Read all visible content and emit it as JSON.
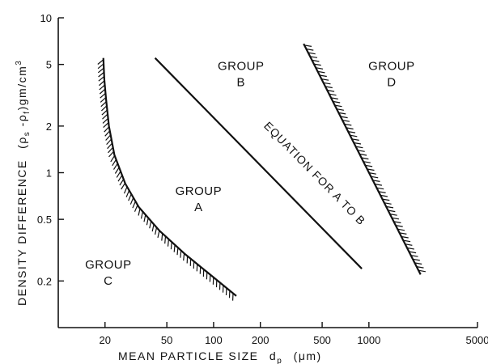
{
  "chart_data": {
    "type": "line",
    "title": "",
    "xlabel": "MEAN PARTICLE SIZE",
    "xlabel_symbol": "d",
    "xlabel_subscript": "p",
    "xlabel_unit": "(μm)",
    "ylabel": "DENSITY DIFFERENCE",
    "ylabel_symbol": "(ρ",
    "ylabel_sub1": "s",
    "ylabel_mid": " -ρ",
    "ylabel_sub2": "f",
    "ylabel_unit": ")gm/cm",
    "ylabel_sup": "3",
    "xscale": "log",
    "yscale": "log",
    "xlim": [
      10,
      5000
    ],
    "ylim": [
      0.1,
      10
    ],
    "xticks": [
      20,
      50,
      100,
      200,
      500,
      1000,
      5000
    ],
    "xtick_labels": [
      "20",
      "50",
      "100",
      "200",
      "500",
      "1000",
      "5000"
    ],
    "yticks": [
      0.2,
      0.5,
      1,
      2,
      5,
      10
    ],
    "ytick_labels": [
      "0.2",
      "0.5",
      "1",
      "2",
      "5",
      "10"
    ],
    "grid": false,
    "series": [
      {
        "style": "hatched",
        "hatch_side": "left",
        "x": [
          19.5,
          19.8,
          20.3,
          21.2,
          23,
          27,
          33,
          45,
          65,
          95,
          140
        ],
        "y": [
          5.5,
          4.0,
          3.0,
          2.0,
          1.3,
          0.85,
          0.6,
          0.42,
          0.3,
          0.22,
          0.16
        ]
      },
      {
        "style": "plain",
        "x": [
          42,
          900
        ],
        "y": [
          5.5,
          0.24
        ]
      },
      {
        "style": "hatched",
        "hatch_side": "right",
        "x": [
          380,
          2150
        ],
        "y": [
          6.8,
          0.22
        ]
      }
    ],
    "regions": [
      {
        "label_line1": "GROUP",
        "label_line2": "A",
        "x": 80,
        "y": 0.72
      },
      {
        "label_line1": "GROUP",
        "label_line2": "B",
        "x": 150,
        "y": 4.6
      },
      {
        "label_line1": "GROUP",
        "label_line2": "C",
        "x": 21,
        "y": 0.24
      },
      {
        "label_line1": "GROUP",
        "label_line2": "D",
        "x": 1400,
        "y": 4.6
      }
    ],
    "annotations": [
      {
        "text": "EQUATION FOR A TO B",
        "x": 430,
        "y": 0.95
      }
    ]
  }
}
